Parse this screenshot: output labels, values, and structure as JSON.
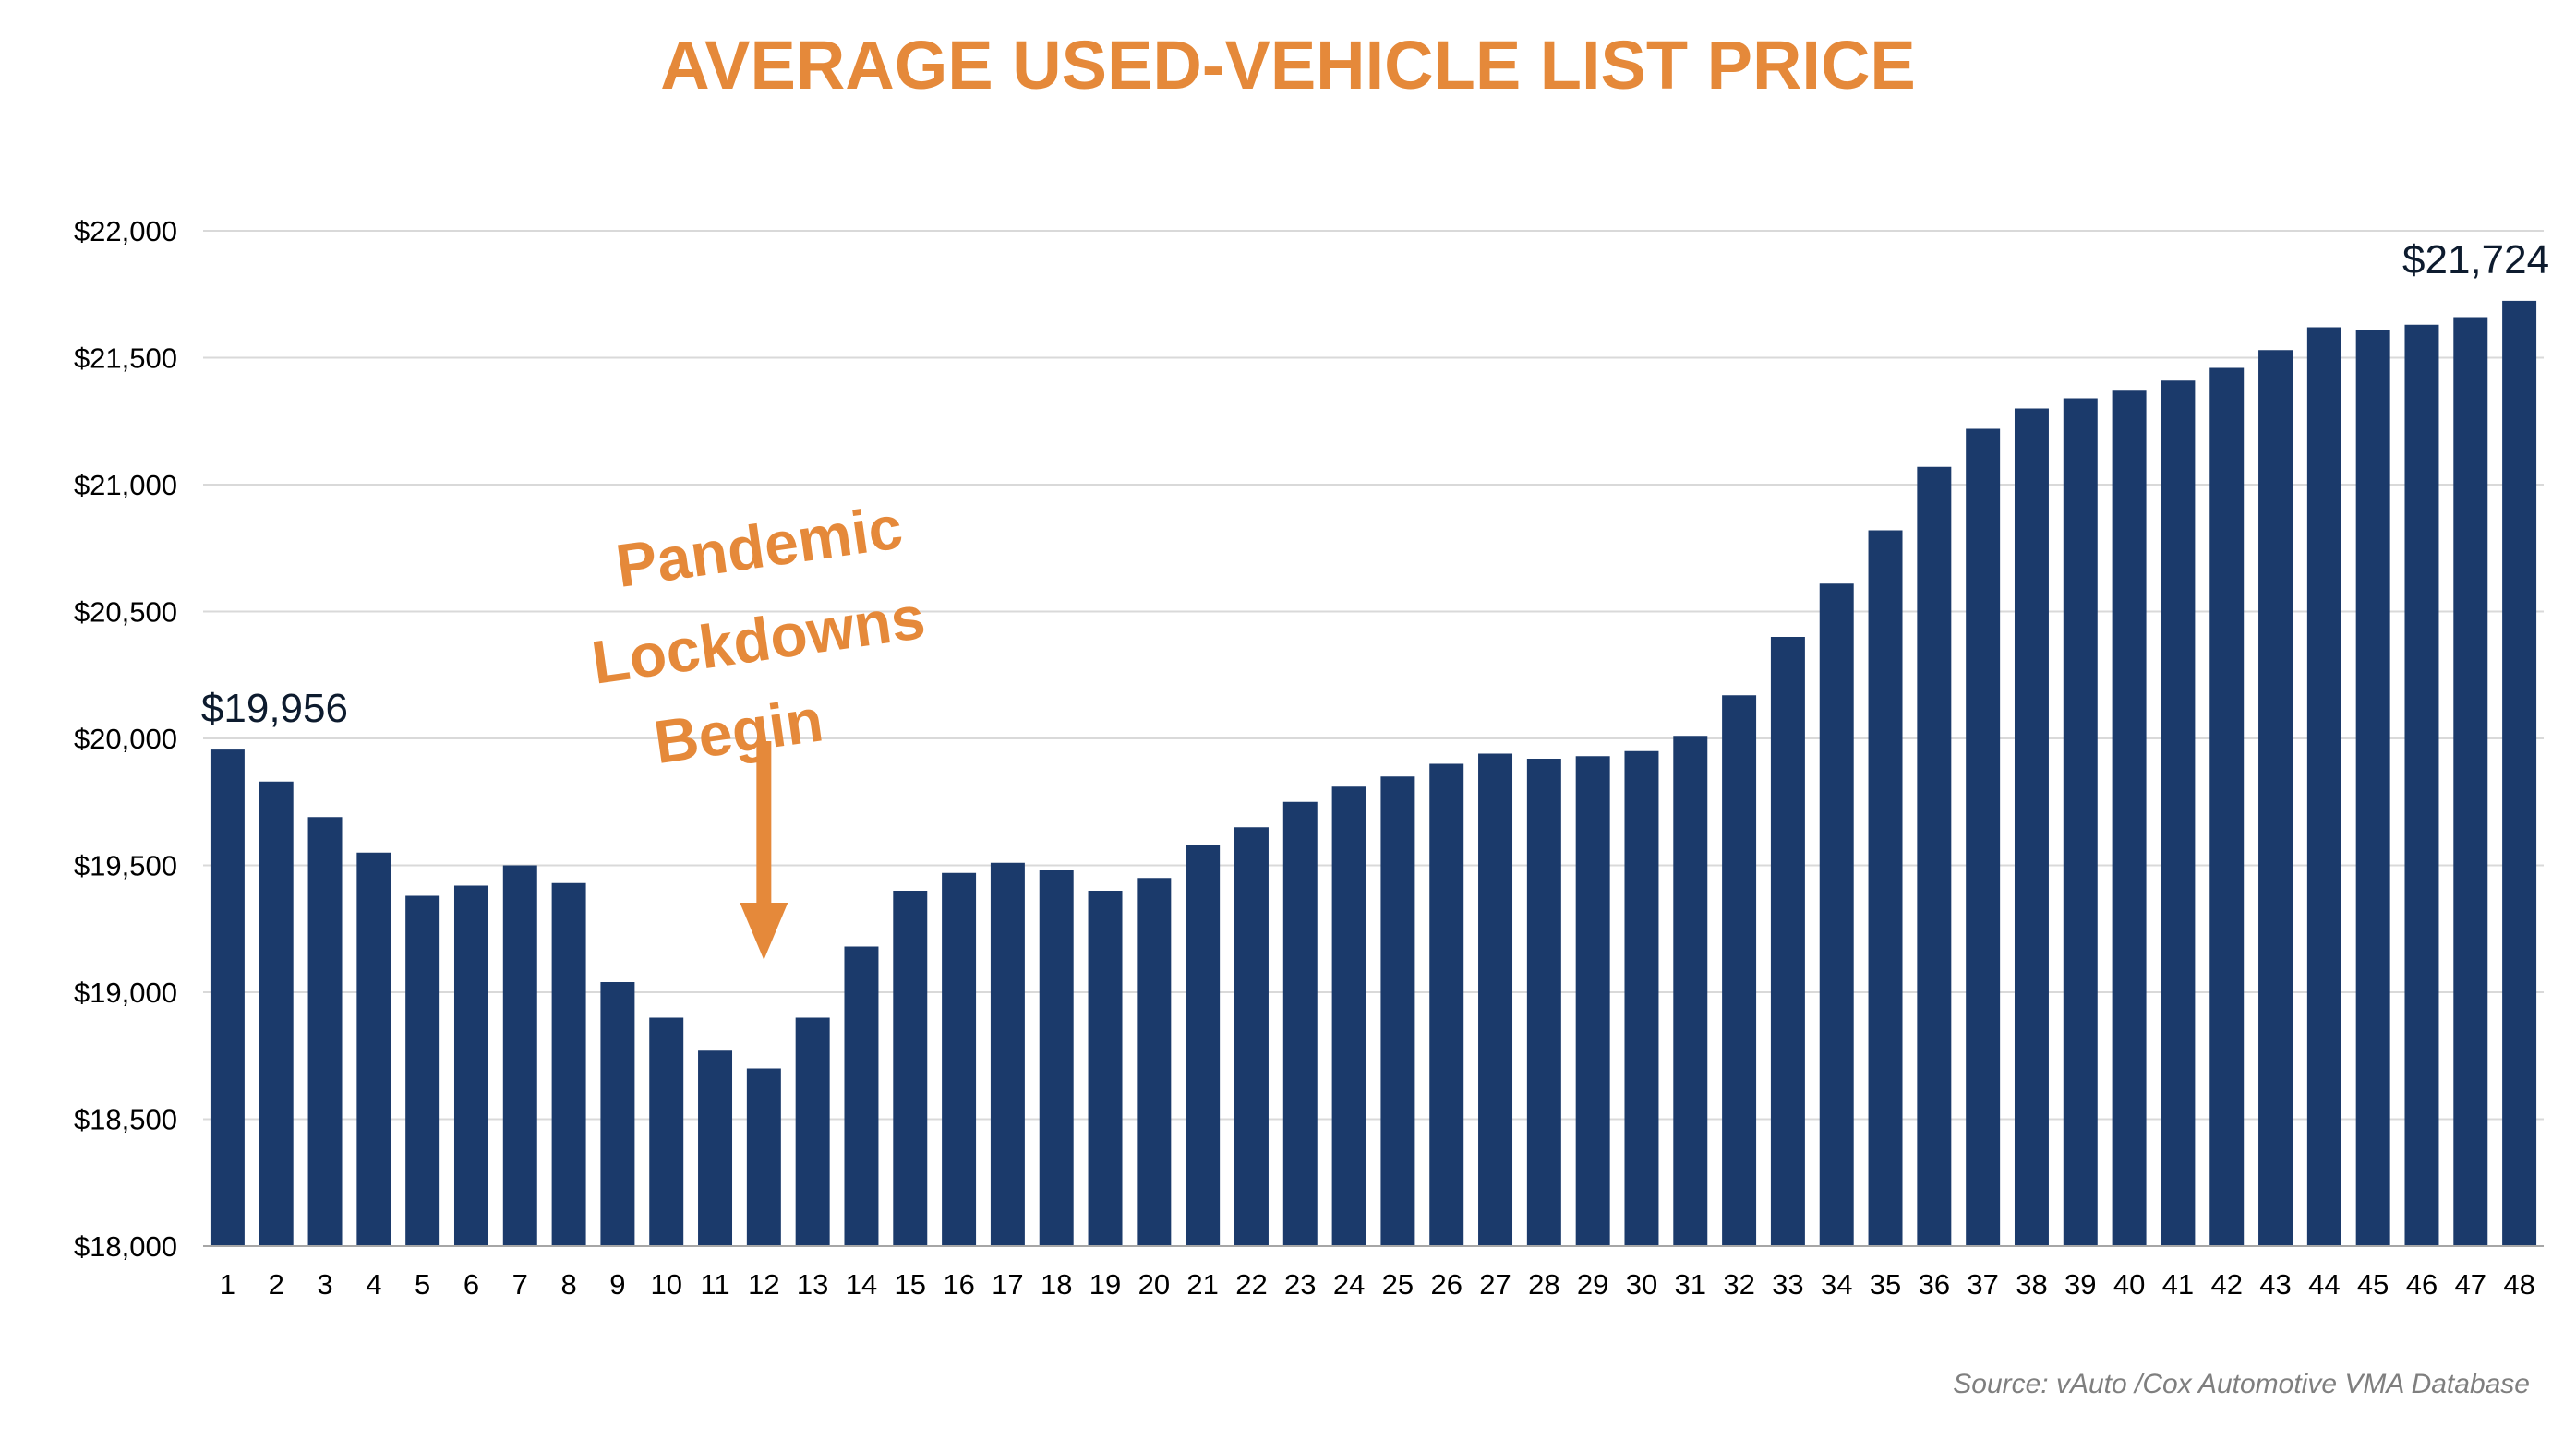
{
  "colors": {
    "bar": "#1b3a6b",
    "title": "#e5893a",
    "annotation": "#e5893a",
    "grid": "#d9d9d9",
    "axis": "#a6a6a6"
  },
  "chart_data": {
    "type": "bar",
    "title": "AVERAGE USED-VEHICLE LIST PRICE",
    "xlabel": "",
    "ylabel": "",
    "ylim": [
      18000,
      22000
    ],
    "yticks": [
      18000,
      18500,
      19000,
      19500,
      20000,
      20500,
      21000,
      21500,
      22000
    ],
    "ytick_labels": [
      "$18,000",
      "$18,500",
      "$19,000",
      "$19,500",
      "$20,000",
      "$20,500",
      "$21,000",
      "$21,500",
      "$22,000"
    ],
    "grid": true,
    "categories": [
      "1",
      "2",
      "3",
      "4",
      "5",
      "6",
      "7",
      "8",
      "9",
      "10",
      "11",
      "12",
      "13",
      "14",
      "15",
      "16",
      "17",
      "18",
      "19",
      "20",
      "21",
      "22",
      "23",
      "24",
      "25",
      "26",
      "27",
      "28",
      "29",
      "30",
      "31",
      "32",
      "33",
      "34",
      "35",
      "36",
      "37",
      "38",
      "39",
      "40",
      "41",
      "42",
      "43",
      "44",
      "45",
      "46",
      "47",
      "48"
    ],
    "values": [
      19956,
      19830,
      19690,
      19550,
      19380,
      19420,
      19500,
      19430,
      19040,
      18900,
      18770,
      18700,
      18900,
      19180,
      19400,
      19470,
      19510,
      19480,
      19400,
      19450,
      19580,
      19650,
      19750,
      19810,
      19850,
      19900,
      19940,
      19920,
      19930,
      19950,
      20010,
      20170,
      20400,
      20610,
      20820,
      21070,
      21220,
      21300,
      21340,
      21370,
      21410,
      21460,
      21530,
      21620,
      21610,
      21630,
      21660,
      21724
    ],
    "data_labels": [
      {
        "category": "1",
        "text": "$19,956"
      },
      {
        "category": "48",
        "text": "$21,724"
      }
    ],
    "annotation": {
      "lines": [
        "Pandemic",
        "Lockdowns",
        "Begin"
      ],
      "arrow_target_category": "12"
    }
  },
  "source": "Source:  vAuto /Cox Automotive VMA Database"
}
